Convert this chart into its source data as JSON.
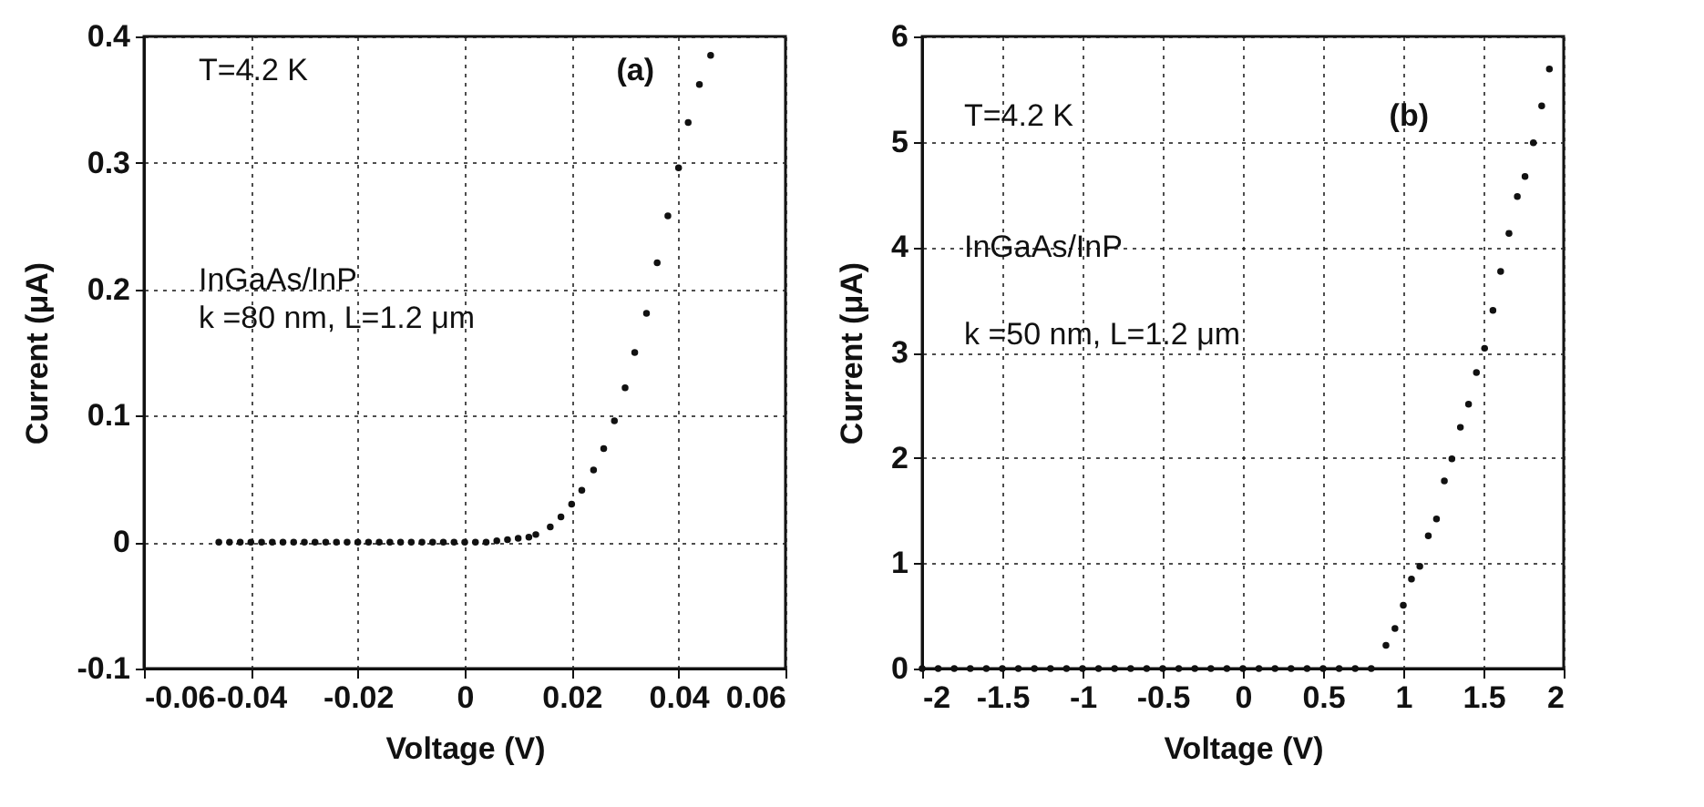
{
  "chart_data": [
    {
      "type": "scatter",
      "xlabel": "Voltage (V)",
      "ylabel": "Current (μA)",
      "marker": "circle",
      "grid": true,
      "annotations": [
        "T=4.2 K",
        "(a)",
        "InGaAs/InP",
        "k =80 nm, L=1.2 μm"
      ],
      "xlim": [
        -0.06,
        0.06
      ],
      "xticks": [
        -0.06,
        -0.04,
        -0.02,
        0,
        0.02,
        0.04,
        0.06
      ],
      "ylim": [
        -0.1,
        0.4
      ],
      "yticks": [
        -0.1,
        0,
        0.1,
        0.2,
        0.3,
        0.4
      ],
      "series": [
        {
          "color": "#111111",
          "x": [
            -0.046,
            -0.044,
            -0.042,
            -0.04,
            -0.038,
            -0.036,
            -0.034,
            -0.032,
            -0.03,
            -0.028,
            -0.026,
            -0.024,
            -0.022,
            -0.02,
            -0.018,
            -0.016,
            -0.014,
            -0.012,
            -0.01,
            -0.008,
            -0.006,
            -0.004,
            -0.002,
            0,
            0.002,
            0.004,
            0.006,
            0.008,
            0.01,
            0.012,
            0.0133,
            0.016,
            0.018,
            0.02,
            0.0219,
            0.0241,
            0.026,
            0.028,
            0.03,
            0.0318,
            0.034,
            0.036,
            0.038,
            0.04,
            0.0418,
            0.0439,
            0.046
          ],
          "values": [
            0,
            0,
            0,
            0,
            0,
            0,
            0,
            0,
            0,
            0,
            0,
            0,
            0,
            0,
            0,
            0,
            0,
            0,
            0,
            0,
            0,
            0,
            0,
            0,
            0,
            0,
            0.001,
            0.002,
            0.003,
            0.004,
            0.006,
            0.012,
            0.02,
            0.03,
            0.041,
            0.057,
            0.074,
            0.096,
            0.122,
            0.15,
            0.181,
            0.221,
            0.258,
            0.296,
            0.332,
            0.362,
            0.385
          ]
        }
      ]
    },
    {
      "type": "scatter",
      "xlabel": "Voltage (V)",
      "ylabel": "Current (μA)",
      "marker": "circle",
      "grid": true,
      "annotations": [
        "T=4.2 K",
        "(b)",
        "InGaAs/InP",
        "k =50 nm, L=1.2 μm"
      ],
      "xlim": [
        -2,
        2
      ],
      "xticks": [
        -2,
        -1.5,
        -1,
        -0.5,
        0,
        0.5,
        1,
        1.5,
        2
      ],
      "ylim": [
        0,
        6
      ],
      "yticks": [
        0,
        1,
        2,
        3,
        4,
        5,
        6
      ],
      "series": [
        {
          "color": "#111111",
          "x": [
            -2,
            -1.9,
            -1.8,
            -1.7,
            -1.6,
            -1.5,
            -1.4,
            -1.3,
            -1.2,
            -1.1,
            -1,
            -0.9,
            -0.8,
            -0.7,
            -0.6,
            -0.5,
            -0.4,
            -0.3,
            -0.2,
            -0.1,
            0,
            0.1,
            0.2,
            0.3,
            0.4,
            0.5,
            0.6,
            0.7,
            0.8,
            0.892,
            0.948,
            1.0,
            1.051,
            1.103,
            1.156,
            1.207,
            1.256,
            1.303,
            1.356,
            1.407,
            1.456,
            1.507,
            1.559,
            1.607,
            1.659,
            1.711,
            1.759,
            1.811,
            1.863,
            1.911
          ],
          "values": [
            0,
            0,
            0,
            0,
            0,
            0,
            0,
            0,
            0,
            0,
            0,
            0,
            0,
            0,
            0,
            0,
            0,
            0,
            0,
            0,
            0,
            0,
            0,
            0,
            0,
            0,
            0,
            0,
            0,
            0.22,
            0.38,
            0.6,
            0.85,
            0.97,
            1.26,
            1.42,
            1.78,
            1.99,
            2.29,
            2.51,
            2.81,
            3.04,
            3.4,
            3.77,
            4.13,
            4.48,
            4.67,
            4.99,
            5.34,
            5.69
          ]
        }
      ]
    }
  ]
}
